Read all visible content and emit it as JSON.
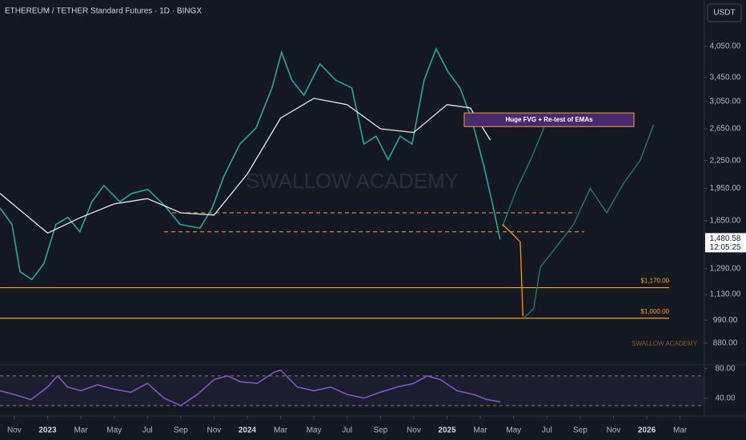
{
  "header": {
    "title": "ETHEREUM / TETHER Standard Futures · 1D · BINGX",
    "currency": "USDT"
  },
  "chart_data": [
    {
      "type": "line",
      "log": true,
      "watermark": "SWALLOW ACADEMY",
      "ylim": [
        790,
        5140
      ],
      "yticks": [
        {
          "value": 4050,
          "label": "4,050.00"
        },
        {
          "value": 3450,
          "label": "3,450.00"
        },
        {
          "value": 3050,
          "label": "3,050.00"
        },
        {
          "value": 2650,
          "label": "2,650.00"
        },
        {
          "value": 2250,
          "label": "2,250.00"
        },
        {
          "value": 1950,
          "label": "1,950.00"
        },
        {
          "value": 1650,
          "label": "1,650.00"
        },
        {
          "value": 1290,
          "label": "1,290.00"
        },
        {
          "value": 1130,
          "label": "1,130.00"
        },
        {
          "value": 990,
          "label": "990.00"
        },
        {
          "value": 880,
          "label": "880.00"
        }
      ],
      "xlim": [
        -0.43,
        20.73
      ],
      "xticks": [
        {
          "value": 0,
          "label": "Nov"
        },
        {
          "value": 1,
          "label": "2023"
        },
        {
          "value": 2,
          "label": "Mar"
        },
        {
          "value": 3,
          "label": "May"
        },
        {
          "value": 4,
          "label": "Jul"
        },
        {
          "value": 5,
          "label": "Sep"
        },
        {
          "value": 6,
          "label": "Nov"
        },
        {
          "value": 7,
          "label": "2024"
        },
        {
          "value": 8,
          "label": "Mar"
        },
        {
          "value": 9,
          "label": "May"
        },
        {
          "value": 10,
          "label": "Jul"
        },
        {
          "value": 11,
          "label": "Sep"
        },
        {
          "value": 12,
          "label": "Nov"
        },
        {
          "value": 13,
          "label": "2025"
        },
        {
          "value": 14,
          "label": "Mar"
        },
        {
          "value": 15,
          "label": "May"
        },
        {
          "value": 16,
          "label": "Jul"
        },
        {
          "value": 17,
          "label": "Sep"
        },
        {
          "value": 18,
          "label": "Nov"
        },
        {
          "value": 19,
          "label": "2026"
        },
        {
          "value": 20,
          "label": "Mar"
        }
      ],
      "series": [
        {
          "color": "#26a69a",
          "x": [
            -0.43,
            -0.07,
            0.17,
            0.53,
            0.89,
            1.25,
            1.61,
            1.97,
            2.33,
            2.69,
            3.17,
            3.53,
            4.01,
            4.5,
            4.98,
            5.58,
            5.94,
            6.3,
            6.78,
            7.26,
            7.74,
            8.03,
            8.34,
            8.7,
            9.18,
            9.66,
            10.14,
            10.5,
            10.87,
            11.23,
            11.59,
            11.95,
            12.31,
            12.67,
            13.03,
            13.39,
            13.75,
            14.11,
            14.35,
            14.59
          ],
          "values": [
            1763,
            1620,
            1270,
            1220,
            1325,
            1620,
            1680,
            1560,
            1820,
            1980,
            1820,
            1900,
            1940,
            1790,
            1620,
            1590,
            1760,
            2080,
            2450,
            2660,
            3270,
            3930,
            3400,
            3150,
            3700,
            3400,
            3270,
            2450,
            2550,
            2260,
            2550,
            2450,
            3400,
            4000,
            3550,
            3270,
            2770,
            2180,
            1820,
            1500
          ]
        },
        {
          "color": "#e8e8e8",
          "x": [
            -0.43,
            1,
            2,
            3,
            4,
            5,
            6,
            7,
            8,
            9,
            10,
            11,
            12,
            13,
            13.7,
            14.3
          ],
          "values": [
            1900,
            1550,
            1680,
            1800,
            1850,
            1720,
            1700,
            2100,
            2800,
            3100,
            3000,
            2650,
            2600,
            3000,
            2950,
            2500
          ]
        },
        {
          "color": "#1e7d6f",
          "x": [
            14.66,
            15.1,
            15.5,
            15.9,
            15.95
          ],
          "values": [
            1600,
            1950,
            2250,
            2650,
            2750
          ]
        },
        {
          "color": "#f7931a",
          "x": [
            14.66,
            14.9,
            15.2,
            15.28
          ],
          "values": [
            1620,
            1560,
            1480,
            1010
          ]
        },
        {
          "color": "#1e7d6f",
          "x": [
            15.3,
            15.6,
            15.8,
            16.3,
            16.8,
            17.3,
            17.8,
            18.3,
            18.8,
            19.2
          ],
          "values": [
            1000,
            1050,
            1300,
            1450,
            1620,
            1950,
            1720,
            2000,
            2250,
            2700
          ]
        }
      ],
      "levels": [
        {
          "value": 1170,
          "label": "$1,170.00"
        },
        {
          "value": 1000,
          "label": "$1,000.00"
        }
      ],
      "zones": [
        1720,
        1560
      ],
      "box": {
        "label": "Huge FVG + Re-test of EMAs",
        "range": [
          2680,
          2875
        ]
      },
      "last_price": {
        "value": 1480.58,
        "label": "1,480.58"
      },
      "countdown": "12:05:25"
    },
    {
      "type": "line",
      "ylim": [
        17,
        85
      ],
      "yticks": [
        {
          "value": 80,
          "label": "80.00"
        },
        {
          "value": 40,
          "label": "40.00"
        }
      ],
      "levels": [
        70,
        30
      ],
      "series": [
        {
          "color": "#7e57c2",
          "x": [
            -0.43,
            0,
            0.5,
            1,
            1.3,
            1.6,
            2,
            2.5,
            3,
            3.5,
            4,
            4.5,
            5,
            5.5,
            6,
            6.4,
            6.8,
            7.3,
            7.8,
            8,
            8.5,
            9,
            9.5,
            10,
            10.5,
            11,
            11.5,
            12,
            12.4,
            12.8,
            13.3,
            13.8,
            14.2,
            14.6
          ],
          "values": [
            50,
            45,
            38,
            55,
            70,
            55,
            50,
            58,
            52,
            48,
            60,
            40,
            30,
            45,
            65,
            70,
            62,
            60,
            75,
            78,
            55,
            50,
            55,
            45,
            40,
            48,
            55,
            60,
            70,
            65,
            50,
            45,
            38,
            35
          ]
        }
      ]
    }
  ]
}
